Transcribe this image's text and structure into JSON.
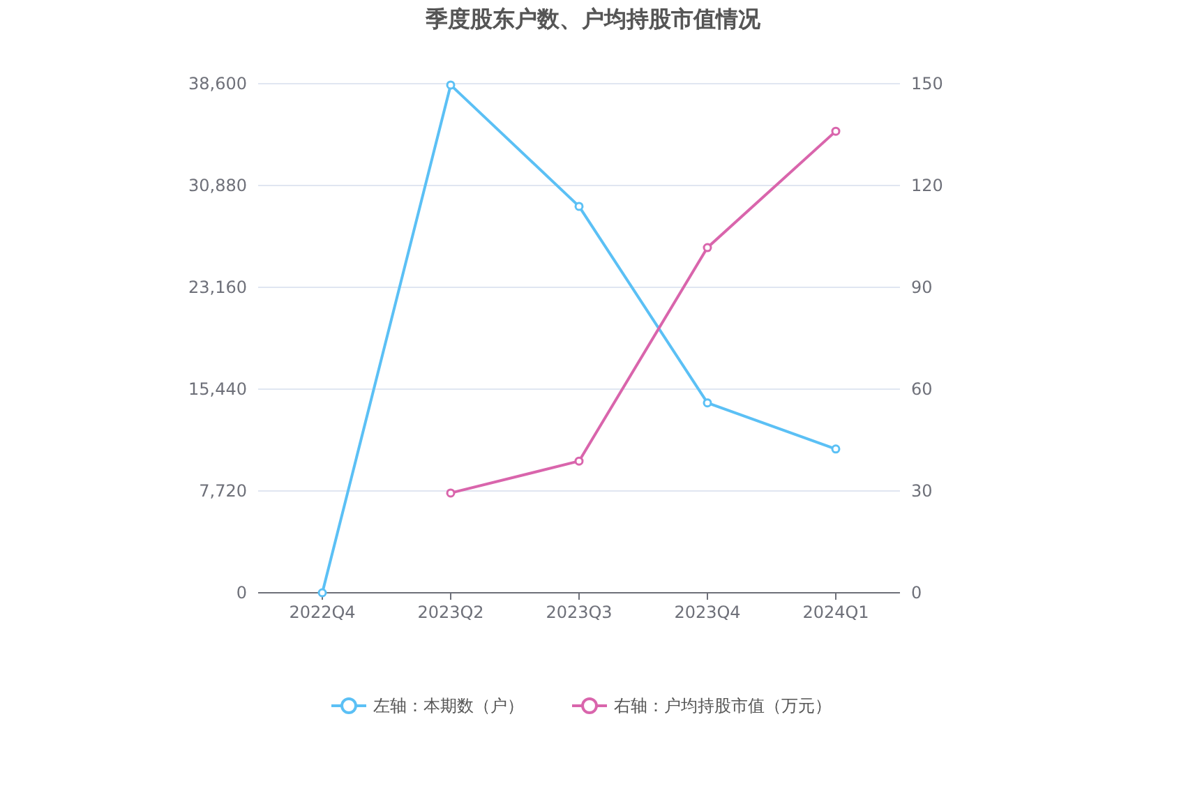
{
  "chart_data": {
    "type": "line",
    "title": "季度股东户数、户均持股市值情况",
    "categories": [
      "2022Q4",
      "2023Q2",
      "2023Q3",
      "2023Q4",
      "2024Q1"
    ],
    "series": [
      {
        "name": "左轴：本期数（户）",
        "color": "#5bc0f5",
        "values": [
          0,
          38500,
          29300,
          14400,
          10900
        ]
      },
      {
        "name": "右轴：户均持股市值（万元）",
        "color": "#d965ac",
        "axis": "y2",
        "values": [
          null,
          29.4,
          38.8,
          101.7,
          136.0
        ]
      }
    ],
    "ylim": [
      0,
      38600
    ],
    "yticks": [
      0,
      {
        "value": 7720,
        "label": "7,720"
      },
      {
        "value": 15440,
        "label": "15,440"
      },
      {
        "value": 23160,
        "label": "23,160"
      },
      {
        "value": 30880,
        "label": "30,880"
      },
      {
        "value": 38600,
        "label": "38,600"
      }
    ],
    "y2lim": [
      0,
      150
    ],
    "y2ticks": [
      0,
      30,
      60,
      90,
      120,
      150
    ],
    "grid": "y",
    "legend": "bottom",
    "marker": "circle",
    "line_style": "solid"
  }
}
